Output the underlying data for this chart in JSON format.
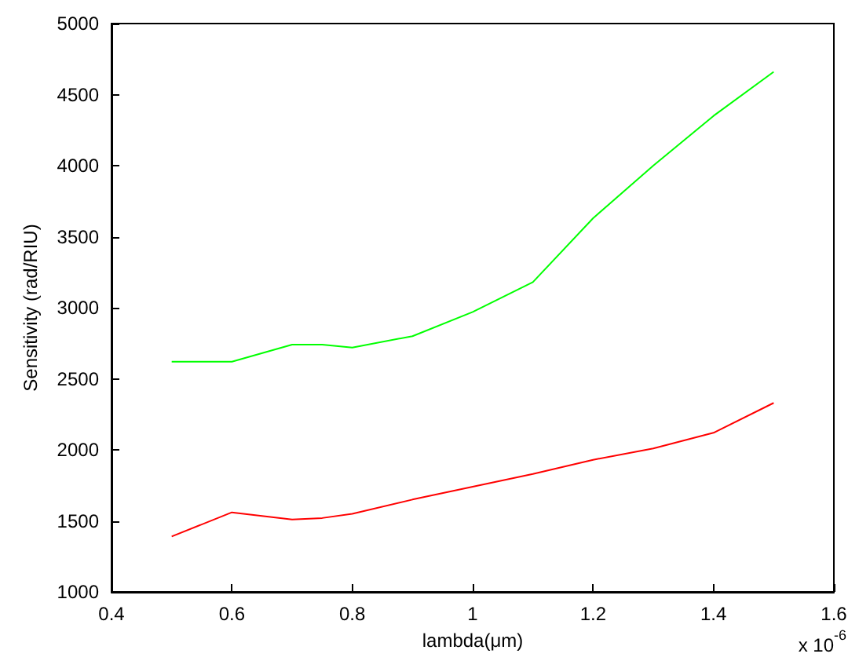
{
  "chart_data": {
    "type": "line",
    "xlabel": "lambda(μm)",
    "ylabel": "Sensitivity (rad/RIU)",
    "annotations": [
      "x 10$^{-6}$"
    ],
    "xlim": [
      0.4,
      1.6
    ],
    "xticks": [
      0.4,
      0.6,
      0.8,
      1,
      1.2,
      1.4,
      1.6
    ],
    "ylim": [
      1000,
      5000
    ],
    "yticks": [
      1000,
      1500,
      2000,
      2500,
      3000,
      3500,
      4000,
      4500,
      5000
    ],
    "grid": false,
    "marker": "none",
    "line_style": "solid",
    "x": [
      0.5,
      0.6,
      0.7,
      0.75,
      0.8,
      0.9,
      1.0,
      1.1,
      1.2,
      1.3,
      1.4,
      1.5
    ],
    "series": [
      {
        "color": "#00ff00",
        "values": [
          2620,
          2620,
          2740,
          2740,
          2720,
          2800,
          2970,
          3180,
          3630,
          4000,
          4350,
          4660
        ]
      },
      {
        "color": "#ff0000",
        "values": [
          1390,
          1560,
          1510,
          1520,
          1550,
          1650,
          1740,
          1830,
          1930,
          2010,
          2120,
          2330
        ]
      }
    ]
  }
}
